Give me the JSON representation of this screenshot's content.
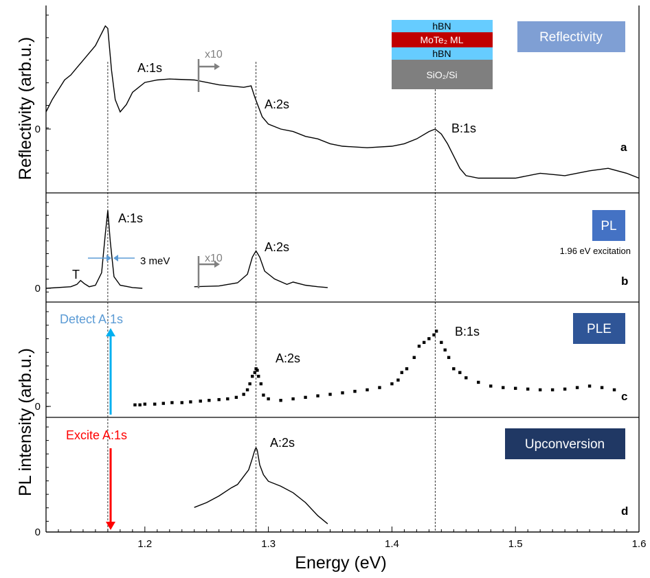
{
  "chart_data": {
    "type": "line",
    "xlabel": "Energy (eV)",
    "xlim": [
      1.12,
      1.6
    ],
    "x_ticks": [
      "1.2",
      "1.3",
      "1.4",
      "1.5",
      "1.6"
    ],
    "x_tick_values": [
      1.2,
      1.3,
      1.4,
      1.5,
      1.6
    ],
    "grid": false,
    "legend": "none",
    "reference_lines_x": [
      1.17,
      1.29,
      1.435
    ],
    "panels": [
      {
        "letter": "a",
        "ylabel": "Reflectivity (arb.u.)",
        "zero_label": "0",
        "ylim": [
          -1,
          2.2
        ],
        "badge": "Reflectivity",
        "badge_color": "#7f9fd4",
        "labels": [
          "A:1s",
          "A:2s",
          "B:1s"
        ],
        "scale_marker": "x10",
        "stack": [
          {
            "label": "hBN",
            "color": "#66ccff"
          },
          {
            "label": "MoTe₂ ML",
            "color": "#c00000"
          },
          {
            "label": "hBN",
            "color": "#66ccff"
          },
          {
            "label": "SiO₂/Si",
            "color": "#7f7f7f"
          }
        ],
        "series": [
          {
            "x": [
              1.12,
              1.125,
              1.13,
              1.135,
              1.14,
              1.145,
              1.15,
              1.155,
              1.16,
              1.163,
              1.166,
              1.168,
              1.17,
              1.173,
              1.176,
              1.18,
              1.185,
              1.19,
              1.2,
              1.21,
              1.22,
              1.24,
              1.26,
              1.28,
              1.286,
              1.289,
              1.295,
              1.3,
              1.31,
              1.32,
              1.33,
              1.34,
              1.35,
              1.36,
              1.38,
              1.4,
              1.41,
              1.42,
              1.43,
              1.435,
              1.44,
              1.445,
              1.45,
              1.455,
              1.46,
              1.47,
              1.48,
              1.5,
              1.52,
              1.54,
              1.56,
              1.575,
              1.59,
              1.6
            ],
            "y": [
              0.35,
              0.6,
              0.8,
              1.0,
              1.1,
              1.25,
              1.4,
              1.55,
              1.7,
              1.85,
              2.0,
              2.1,
              2.05,
              1.2,
              0.6,
              0.35,
              0.5,
              0.75,
              0.95,
              1.0,
              1.02,
              1.0,
              0.9,
              0.85,
              0.88,
              0.65,
              0.25,
              0.1,
              0.0,
              -0.05,
              -0.15,
              -0.2,
              -0.3,
              -0.35,
              -0.38,
              -0.35,
              -0.3,
              -0.2,
              -0.05,
              0.0,
              -0.1,
              -0.3,
              -0.55,
              -0.8,
              -0.95,
              -1.0,
              -1.0,
              -1.0,
              -0.9,
              -0.95,
              -0.85,
              -0.8,
              -0.9,
              -1.0
            ]
          }
        ]
      },
      {
        "letter": "b",
        "zero_label": "0",
        "ylim": [
          0,
          1.1
        ],
        "badge": "PL",
        "badge_color": "#4472c4",
        "labels": [
          "A:1s",
          "A:2s",
          "T"
        ],
        "scale_marker": "x10",
        "linewidth_label": "3 meV",
        "excitation": "1.96 eV excitation",
        "series": [
          {
            "x": [
              1.12,
              1.14,
              1.145,
              1.148,
              1.151,
              1.155,
              1.16,
              1.165,
              1.168,
              1.17,
              1.172,
              1.175,
              1.18,
              1.19,
              1.198
            ],
            "y": [
              0.0,
              0.02,
              0.05,
              0.1,
              0.06,
              0.02,
              0.04,
              0.2,
              0.7,
              1.0,
              0.6,
              0.15,
              0.04,
              0.01,
              0.0
            ]
          },
          {
            "x": [
              1.24,
              1.26,
              1.275,
              1.283,
              1.287,
              1.29,
              1.293,
              1.297,
              1.305,
              1.315,
              1.32,
              1.33,
              1.34,
              1.348
            ],
            "y": [
              0.02,
              0.03,
              0.07,
              0.18,
              0.4,
              0.48,
              0.4,
              0.22,
              0.12,
              0.05,
              0.08,
              0.04,
              0.02,
              0.01
            ]
          }
        ]
      },
      {
        "letter": "c",
        "zero_label": "0",
        "ylim": [
          0,
          1.25
        ],
        "badge": "PLE",
        "badge_color": "#2f5597",
        "labels": [
          "A:2s",
          "B:1s"
        ],
        "arrow_label": "Detect A:1s",
        "arrow_color": "#00b0f0",
        "series": [
          {
            "x": [
              1.192,
              1.196,
              1.2,
              1.208,
              1.215,
              1.222,
              1.23,
              1.237,
              1.245,
              1.252,
              1.26,
              1.267,
              1.274,
              1.28,
              1.283,
              1.285,
              1.287,
              1.289,
              1.29,
              1.291,
              1.292,
              1.294,
              1.296,
              1.3,
              1.31,
              1.32,
              1.33,
              1.34,
              1.35,
              1.36,
              1.37,
              1.38,
              1.39,
              1.4,
              1.405,
              1.408,
              1.412,
              1.418,
              1.422,
              1.426,
              1.43,
              1.434,
              1.436,
              1.44,
              1.443,
              1.446,
              1.45,
              1.455,
              1.46,
              1.47,
              1.48,
              1.49,
              1.5,
              1.51,
              1.52,
              1.53,
              1.54,
              1.55,
              1.56,
              1.57,
              1.58
            ],
            "y": [
              0.02,
              0.02,
              0.03,
              0.03,
              0.04,
              0.05,
              0.05,
              0.06,
              0.07,
              0.08,
              0.09,
              0.1,
              0.12,
              0.16,
              0.22,
              0.3,
              0.4,
              0.45,
              0.5,
              0.48,
              0.4,
              0.3,
              0.15,
              0.1,
              0.08,
              0.1,
              0.12,
              0.14,
              0.16,
              0.18,
              0.2,
              0.22,
              0.25,
              0.3,
              0.35,
              0.45,
              0.5,
              0.65,
              0.8,
              0.85,
              0.9,
              0.95,
              1.0,
              0.85,
              0.75,
              0.65,
              0.5,
              0.45,
              0.38,
              0.32,
              0.27,
              0.25,
              0.24,
              0.23,
              0.22,
              0.22,
              0.23,
              0.25,
              0.27,
              0.25,
              0.22
            ]
          }
        ]
      },
      {
        "letter": "d",
        "zero_label": "0",
        "ylim": [
          0,
          1.3
        ],
        "badge": "Upconversion",
        "badge_color": "#203864",
        "labels": [
          "A:2s"
        ],
        "arrow_label": "Excite A:1s",
        "arrow_color": "#ff0000",
        "series": [
          {
            "x": [
              1.24,
              1.25,
              1.26,
              1.27,
              1.275,
              1.28,
              1.284,
              1.287,
              1.289,
              1.29,
              1.291,
              1.293,
              1.296,
              1.3,
              1.31,
              1.32,
              1.33,
              1.34,
              1.348
            ],
            "y": [
              0.3,
              0.36,
              0.44,
              0.54,
              0.58,
              0.68,
              0.76,
              0.9,
              1.0,
              1.03,
              1.0,
              0.82,
              0.7,
              0.62,
              0.56,
              0.48,
              0.36,
              0.2,
              0.1
            ]
          }
        ]
      }
    ]
  }
}
